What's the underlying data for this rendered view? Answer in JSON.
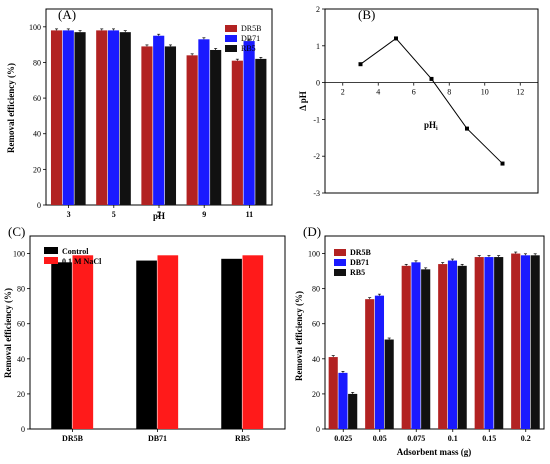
{
  "chart_data": [
    {
      "panel": "(A)",
      "type": "bar",
      "xlabel": "pH",
      "ylabel": "Removal efficiency (%)",
      "categories": [
        "3",
        "5",
        "7",
        "9",
        "11"
      ],
      "ylim": [
        0,
        110
      ],
      "yticks": [
        0,
        20,
        40,
        60,
        80,
        100
      ],
      "legend": "top-right",
      "series": [
        {
          "name": "DR5B",
          "color": "#b22222",
          "values": [
            98,
            98,
            89,
            84,
            81
          ]
        },
        {
          "name": "DB71",
          "color": "#1a1aff",
          "values": [
            98,
            98,
            95,
            93,
            92
          ]
        },
        {
          "name": "RB5",
          "color": "#111111",
          "values": [
            97,
            97,
            89,
            87,
            82
          ]
        }
      ]
    },
    {
      "panel": "(B)",
      "type": "line",
      "xlabel": "pHi",
      "ylabel": "Δ pH",
      "x": [
        3,
        5,
        7,
        9,
        11
      ],
      "y": [
        0.5,
        1.2,
        0.1,
        -1.25,
        -2.2
      ],
      "xlim": [
        1,
        13
      ],
      "ylim": [
        -3,
        2
      ],
      "xticks": [
        2,
        4,
        6,
        8,
        10,
        12
      ],
      "yticks": [
        -3,
        -2,
        -1,
        0,
        1,
        2
      ]
    },
    {
      "panel": "(C)",
      "type": "bar",
      "ylabel": "Removal efficiency (%)",
      "categories": [
        "DR5B",
        "DB71",
        "RB5"
      ],
      "ylim": [
        0,
        110
      ],
      "yticks": [
        0,
        20,
        40,
        60,
        80,
        100
      ],
      "legend": "top-left",
      "series": [
        {
          "name": "Control",
          "color": "#000000",
          "values": [
            95,
            96,
            97
          ]
        },
        {
          "name": "0.1 M NaCl",
          "color": "#ff1a1a",
          "values": [
            99,
            99,
            99
          ]
        }
      ]
    },
    {
      "panel": "(D)",
      "type": "bar",
      "xlabel": "Adsorbent mass (g)",
      "ylabel": "Removal efficiency (%)",
      "categories": [
        "0.025",
        "0.05",
        "0.075",
        "0.1",
        "0.15",
        "0.2"
      ],
      "ylim": [
        0,
        110
      ],
      "yticks": [
        0,
        20,
        40,
        60,
        80,
        100
      ],
      "legend": "top-left",
      "series": [
        {
          "name": "DR5B",
          "color": "#b22222",
          "values": [
            41,
            74,
            93,
            94,
            98,
            100
          ]
        },
        {
          "name": "DB71",
          "color": "#1a1aff",
          "values": [
            32,
            76,
            95,
            96,
            98,
            99
          ]
        },
        {
          "name": "RB5",
          "color": "#111111",
          "values": [
            20,
            51,
            91,
            93,
            98,
            99
          ]
        }
      ]
    }
  ]
}
